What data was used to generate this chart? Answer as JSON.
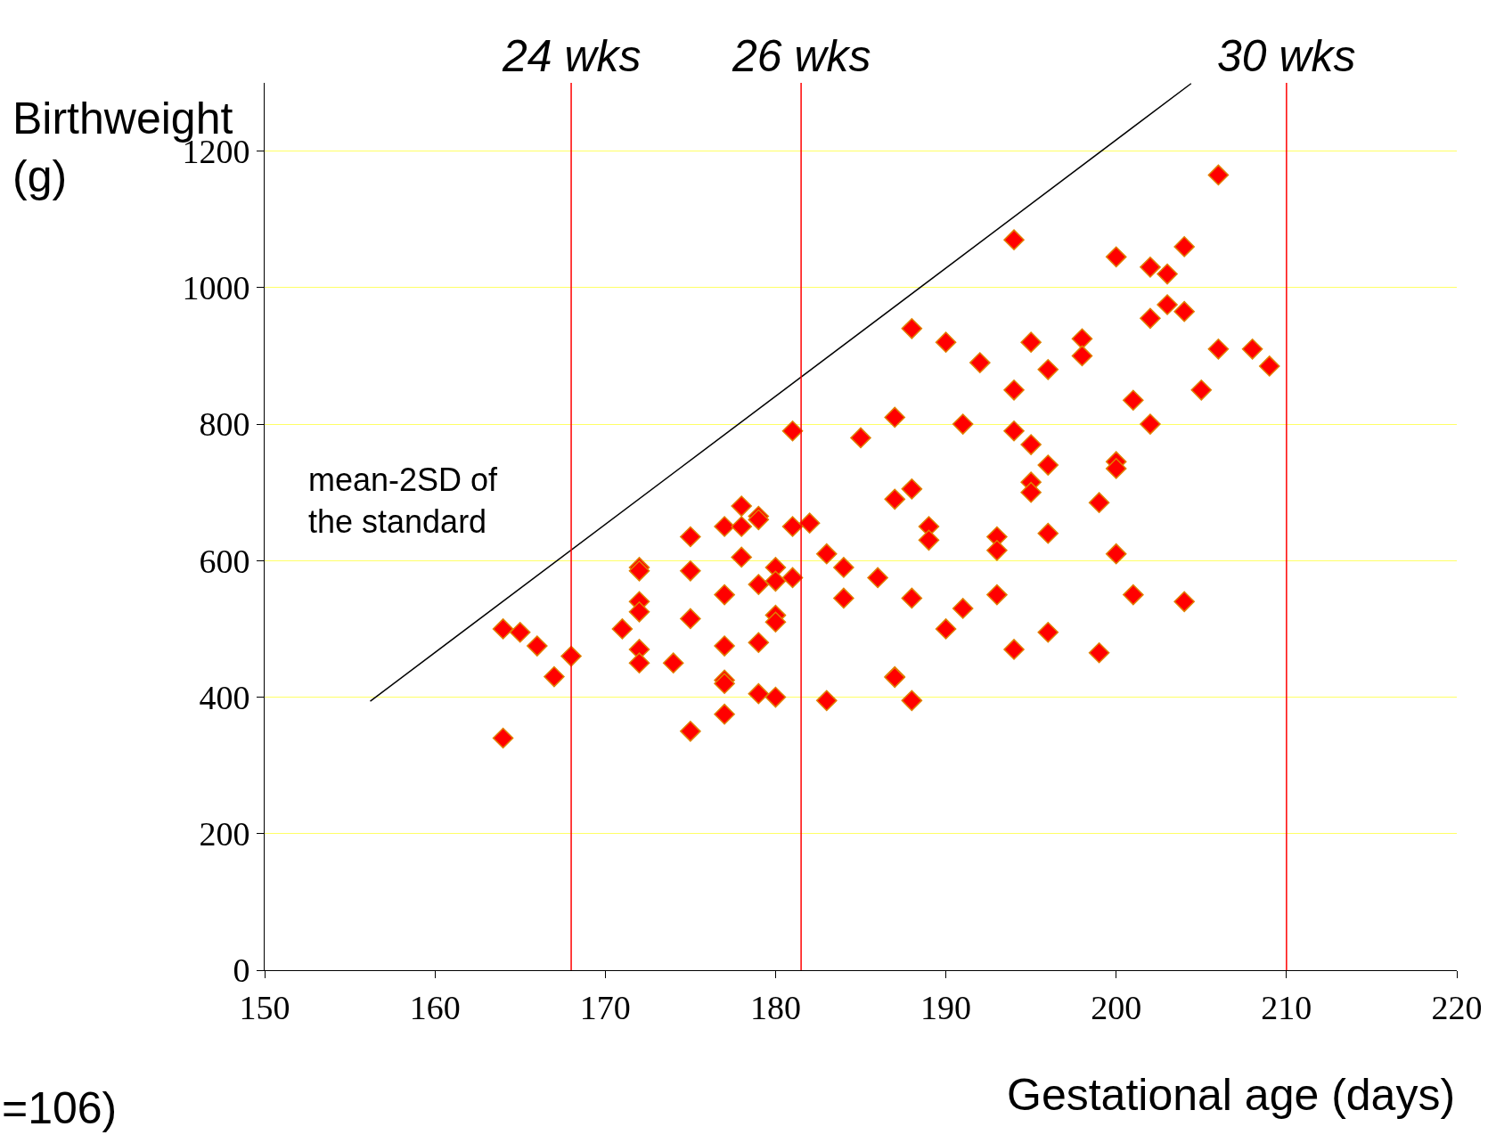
{
  "chart_data": {
    "type": "scatter",
    "ylabel": "Birthweight\n(g)",
    "xlabel": "Gestational age (days)",
    "xlim": [
      150,
      220
    ],
    "xticks": [
      150,
      160,
      170,
      180,
      190,
      200,
      210,
      220
    ],
    "ylim": [
      0,
      1300
    ],
    "yticks": [
      0,
      200,
      400,
      600,
      800,
      1000,
      1200
    ],
    "grid": "y",
    "series": [
      {
        "marker": "diamond",
        "color": "#ff0000",
        "x": [
          164,
          164,
          165,
          166,
          167,
          168,
          171,
          172,
          172,
          172,
          172,
          172,
          172,
          174,
          175,
          175,
          175,
          175,
          177,
          177,
          177,
          177,
          177,
          177,
          178,
          178,
          178,
          179,
          179,
          179,
          179,
          179,
          180,
          180,
          180,
          180,
          180,
          181,
          181,
          181,
          182,
          183,
          183,
          184,
          184,
          185,
          186,
          187,
          187,
          187,
          187,
          188,
          188,
          188,
          188,
          189,
          189,
          190,
          190,
          191,
          191,
          192,
          193,
          193,
          193,
          194,
          194,
          194,
          194,
          195,
          195,
          195,
          195,
          196,
          196,
          196,
          196,
          198,
          198,
          199,
          199,
          200,
          200,
          200,
          200,
          201,
          201,
          202,
          202,
          202,
          203,
          203,
          204,
          204,
          204,
          205,
          206,
          206,
          208,
          209
        ],
        "values": [
          340,
          500,
          495,
          475,
          430,
          460,
          500,
          590,
          585,
          540,
          525,
          470,
          450,
          450,
          635,
          585,
          515,
          350,
          650,
          550,
          475,
          425,
          420,
          375,
          680,
          650,
          605,
          665,
          660,
          565,
          480,
          405,
          590,
          570,
          520,
          510,
          400,
          790,
          650,
          575,
          655,
          610,
          395,
          590,
          545,
          780,
          575,
          810,
          690,
          430,
          429,
          940,
          705,
          545,
          395,
          650,
          630,
          920,
          500,
          800,
          530,
          890,
          635,
          615,
          550,
          1070,
          850,
          790,
          470,
          920,
          770,
          715,
          700,
          880,
          740,
          640,
          495,
          925,
          900,
          685,
          465,
          1045,
          745,
          735,
          610,
          835,
          550,
          1030,
          955,
          800,
          1020,
          975,
          1060,
          965,
          540,
          850,
          1165,
          910,
          910,
          885
        ]
      },
      {
        "type": "line",
        "color": "#000000",
        "x": [
          156.2,
          204.4
        ],
        "values": [
          394,
          1299
        ]
      }
    ],
    "ref_lines": [
      {
        "axis": "x",
        "value": 168,
        "label": "24 wks",
        "color": "#ff0000"
      },
      {
        "axis": "x",
        "value": 181.5,
        "label": "26 wks",
        "color": "#ff0000"
      },
      {
        "axis": "x",
        "value": 210,
        "label": "30 wks",
        "color": "#ff0000"
      }
    ],
    "annotations": [
      "mean-2SD of\nthe standard",
      "=106)"
    ]
  }
}
